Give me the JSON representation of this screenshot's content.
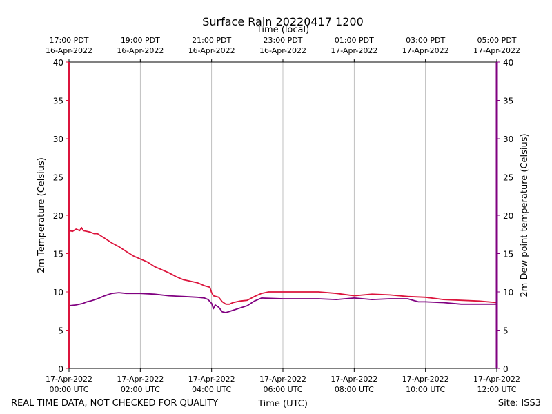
{
  "chart_data": {
    "type": "line",
    "title": "Surface Rain 20220417 1200",
    "top_axis_label": "Time (local)",
    "xlabel": "Time (UTC)",
    "ylabel_left": "2m Temperature (Celsius)",
    "ylabel_right": "2m Dew point temperature (Celsius)",
    "xlim_hours_utc": [
      0,
      12
    ],
    "ylim": [
      0,
      40
    ],
    "y_ticks": [
      "0",
      "5",
      "10",
      "15",
      "20",
      "25",
      "30",
      "35",
      "40"
    ],
    "x_ticks_utc": [
      {
        "hour": 0,
        "date": "17-Apr-2022",
        "time": "00:00 UTC"
      },
      {
        "hour": 2,
        "date": "17-Apr-2022",
        "time": "02:00 UTC"
      },
      {
        "hour": 4,
        "date": "17-Apr-2022",
        "time": "04:00 UTC"
      },
      {
        "hour": 6,
        "date": "17-Apr-2022",
        "time": "06:00 UTC"
      },
      {
        "hour": 8,
        "date": "17-Apr-2022",
        "time": "08:00 UTC"
      },
      {
        "hour": 10,
        "date": "17-Apr-2022",
        "time": "10:00 UTC"
      },
      {
        "hour": 12,
        "date": "17-Apr-2022",
        "time": "12:00 UTC"
      }
    ],
    "x_ticks_local": [
      {
        "hour": 0,
        "time": "17:00 PDT",
        "date": "16-Apr-2022"
      },
      {
        "hour": 2,
        "time": "19:00 PDT",
        "date": "16-Apr-2022"
      },
      {
        "hour": 4,
        "time": "21:00 PDT",
        "date": "16-Apr-2022"
      },
      {
        "hour": 6,
        "time": "23:00 PDT",
        "date": "16-Apr-2022"
      },
      {
        "hour": 8,
        "time": "01:00 PDT",
        "date": "17-Apr-2022"
      },
      {
        "hour": 10,
        "time": "03:00 PDT",
        "date": "17-Apr-2022"
      },
      {
        "hour": 12,
        "time": "05:00 PDT",
        "date": "17-Apr-2022"
      }
    ],
    "grid": "vertical",
    "series": [
      {
        "name": "2m Temperature",
        "color": "#dc143c",
        "axis": "left",
        "x": [
          0,
          0.1,
          0.2,
          0.3,
          0.35,
          0.4,
          0.5,
          0.6,
          0.7,
          0.8,
          0.9,
          1.0,
          1.2,
          1.4,
          1.6,
          1.8,
          2.0,
          2.2,
          2.4,
          2.6,
          2.8,
          3.0,
          3.2,
          3.4,
          3.6,
          3.8,
          3.95,
          4.0,
          4.05,
          4.2,
          4.3,
          4.4,
          4.5,
          4.6,
          4.8,
          5.0,
          5.2,
          5.4,
          5.6,
          6.0,
          6.5,
          7.0,
          7.5,
          8.0,
          8.5,
          9.0,
          9.5,
          10.0,
          10.5,
          11.0,
          11.5,
          12.0
        ],
        "values": [
          18.0,
          17.9,
          18.2,
          18.0,
          18.4,
          18.0,
          17.9,
          17.8,
          17.6,
          17.6,
          17.3,
          17.0,
          16.4,
          15.9,
          15.3,
          14.7,
          14.3,
          13.9,
          13.3,
          12.9,
          12.5,
          12.0,
          11.6,
          11.4,
          11.2,
          10.8,
          10.6,
          9.9,
          9.5,
          9.3,
          8.7,
          8.4,
          8.4,
          8.6,
          8.8,
          8.9,
          9.4,
          9.8,
          10.0,
          10.0,
          10.0,
          10.0,
          9.8,
          9.5,
          9.7,
          9.6,
          9.4,
          9.3,
          9.0,
          8.9,
          8.8,
          8.6
        ]
      },
      {
        "name": "2m Dew point temperature",
        "color": "#800080",
        "axis": "right",
        "x": [
          0,
          0.2,
          0.4,
          0.5,
          0.6,
          0.8,
          1.0,
          1.2,
          1.4,
          1.6,
          2.0,
          2.4,
          2.8,
          3.2,
          3.6,
          3.8,
          3.9,
          4.0,
          4.05,
          4.1,
          4.2,
          4.3,
          4.4,
          4.6,
          4.8,
          5.0,
          5.2,
          5.4,
          6.0,
          6.5,
          7.0,
          7.5,
          8.0,
          8.5,
          9.0,
          9.5,
          9.8,
          10.0,
          10.5,
          11.0,
          11.5,
          12.0
        ],
        "values": [
          8.2,
          8.3,
          8.5,
          8.7,
          8.8,
          9.1,
          9.5,
          9.8,
          9.9,
          9.8,
          9.8,
          9.7,
          9.5,
          9.4,
          9.3,
          9.2,
          9.0,
          8.5,
          7.8,
          8.3,
          8.0,
          7.4,
          7.3,
          7.6,
          7.9,
          8.2,
          8.8,
          9.2,
          9.1,
          9.1,
          9.1,
          9.0,
          9.2,
          9.0,
          9.1,
          9.1,
          8.7,
          8.7,
          8.6,
          8.4,
          8.4,
          8.4
        ]
      }
    ],
    "left_axis_color": "#dc143c",
    "right_axis_color": "#800080"
  },
  "footer": {
    "left": "REAL TIME DATA, NOT CHECKED FOR QUALITY",
    "right": "Site: ISS3"
  }
}
